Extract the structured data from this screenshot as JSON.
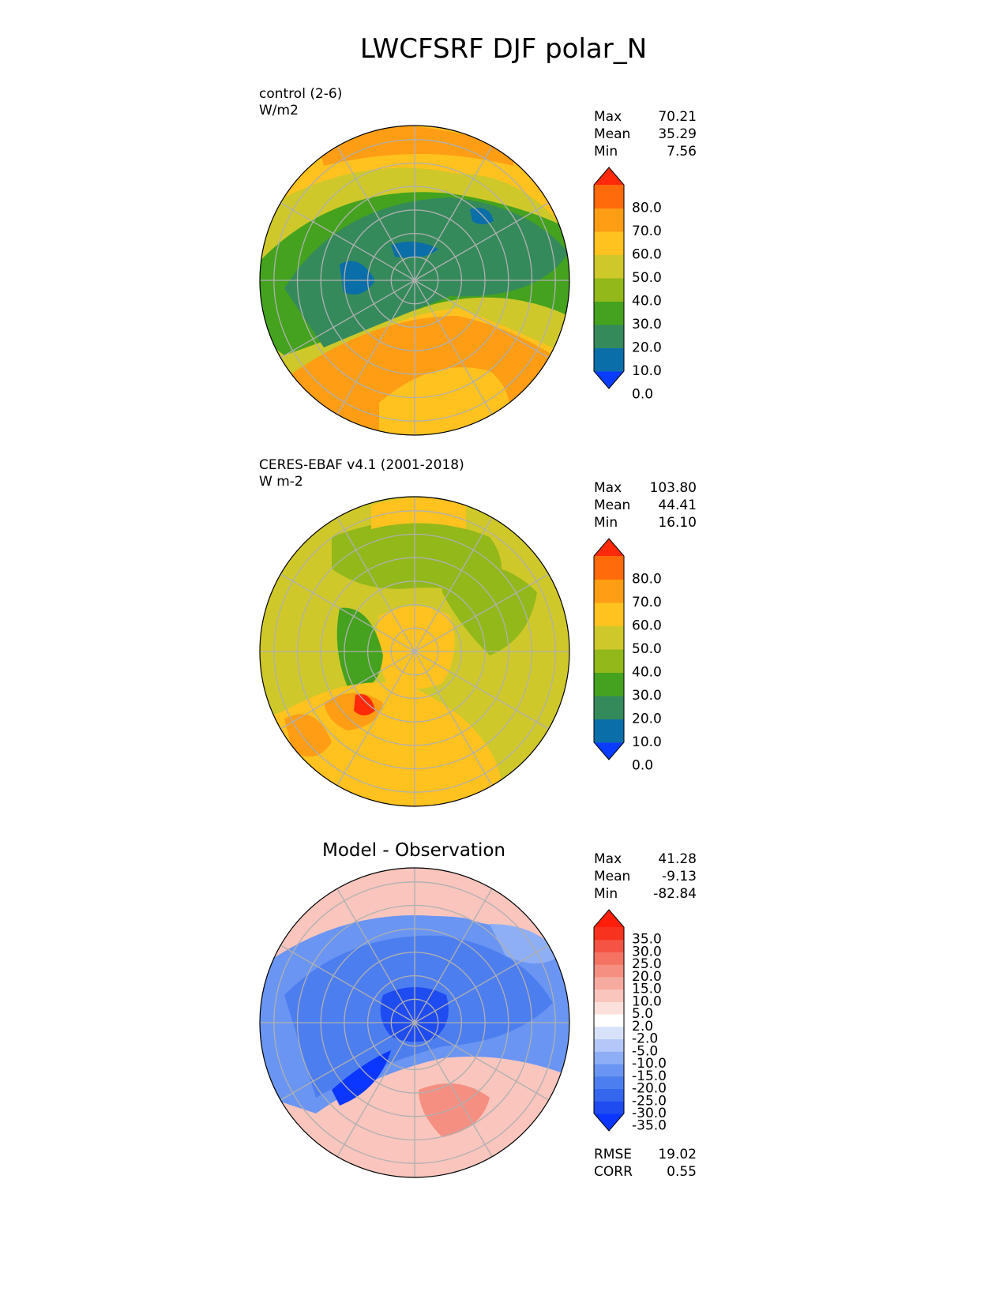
{
  "title": "LWCFSRF DJF polar_N",
  "chart_data": [
    {
      "type": "heatmap",
      "projection": "north-polar-stereographic",
      "title_line1": "control (2-6)",
      "title_line2": "W/m2",
      "stats": [
        {
          "label": "Max",
          "value": "70.21"
        },
        {
          "label": "Mean",
          "value": "35.29"
        },
        {
          "label": "Min",
          "value": "7.56"
        }
      ],
      "colorbar": {
        "levels": [
          0,
          10,
          20,
          30,
          40,
          50,
          60,
          70,
          80
        ],
        "tick_labels": [
          "80.0",
          "70.0",
          "60.0",
          "50.0",
          "40.0",
          "30.0",
          "20.0",
          "10.0",
          "0.0"
        ],
        "colors": [
          "#0a3cff",
          "#0a6ea8",
          "#358a5c",
          "#44a21e",
          "#92b81a",
          "#cfc82a",
          "#ffc21f",
          "#ff9d14",
          "#ff6a0a",
          "#ff2a0a"
        ]
      }
    },
    {
      "type": "heatmap",
      "projection": "north-polar-stereographic",
      "title_line1": "CERES-EBAF v4.1 (2001-2018)",
      "title_line2": "W m-2",
      "stats": [
        {
          "label": "Max",
          "value": "103.80"
        },
        {
          "label": "Mean",
          "value": "44.41"
        },
        {
          "label": "Min",
          "value": "16.10"
        }
      ],
      "colorbar": {
        "levels": [
          0,
          10,
          20,
          30,
          40,
          50,
          60,
          70,
          80
        ],
        "tick_labels": [
          "80.0",
          "70.0",
          "60.0",
          "50.0",
          "40.0",
          "30.0",
          "20.0",
          "10.0",
          "0.0"
        ],
        "colors": [
          "#0a3cff",
          "#0a6ea8",
          "#358a5c",
          "#44a21e",
          "#92b81a",
          "#cfc82a",
          "#ffc21f",
          "#ff9d14",
          "#ff6a0a",
          "#ff2a0a"
        ]
      }
    },
    {
      "type": "heatmap",
      "projection": "north-polar-stereographic",
      "title": "Model - Observation",
      "stats": [
        {
          "label": "Max",
          "value": "41.28"
        },
        {
          "label": "Mean",
          "value": "-9.13"
        },
        {
          "label": "Min",
          "value": "-82.84"
        }
      ],
      "metrics": [
        {
          "label": "RMSE",
          "value": "19.02"
        },
        {
          "label": "CORR",
          "value": "0.55"
        }
      ],
      "colorbar": {
        "levels": [
          -35,
          -30,
          -25,
          -20,
          -15,
          -10,
          -5,
          -2,
          2,
          5,
          10,
          15,
          20,
          25,
          30,
          35
        ],
        "tick_labels": [
          "35.0",
          "30.0",
          "25.0",
          "20.0",
          "15.0",
          "10.0",
          "5.0",
          "2.0",
          "-2.0",
          "-5.0",
          "-10.0",
          "-15.0",
          "-20.0",
          "-25.0",
          "-30.0",
          "-35.0"
        ],
        "colors": [
          "#0a36ff",
          "#1e4cf0",
          "#3566ee",
          "#4d7ef0",
          "#6a95f2",
          "#8eaff5",
          "#b3c8f8",
          "#d8e1fa",
          "#ffffff",
          "#fbe0dc",
          "#f9c5bd",
          "#f7aba0",
          "#f58f82",
          "#f47363",
          "#f55344",
          "#f7321e",
          "#ff1e0a"
        ]
      }
    }
  ]
}
